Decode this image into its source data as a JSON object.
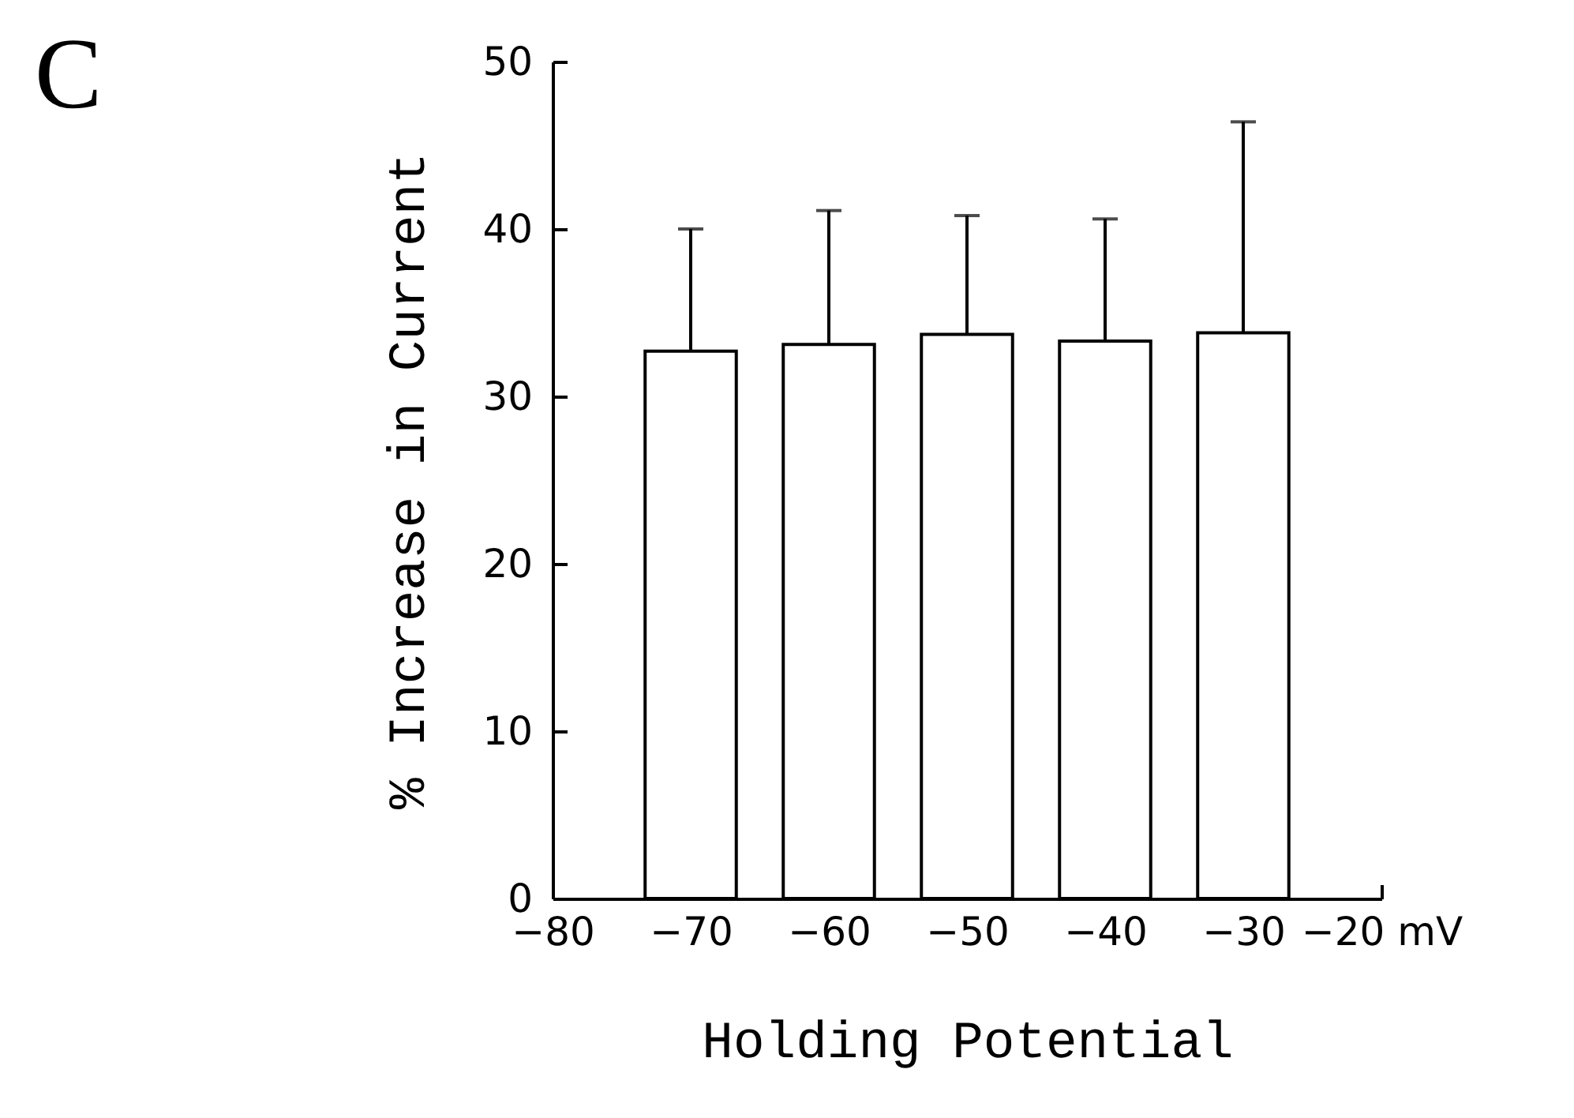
{
  "chart_data": {
    "type": "bar",
    "xlabel": "Holding Potential",
    "ylabel": "% Increase in Current",
    "annotations": [
      "C"
    ],
    "x": [
      -70,
      -60,
      -50,
      -40,
      -30
    ],
    "values": [
      32.7,
      33.1,
      33.7,
      33.3,
      33.8
    ],
    "errors": [
      [
        32.7,
        40.0
      ],
      [
        33.1,
        41.1
      ],
      [
        33.7,
        40.8
      ],
      [
        33.3,
        40.6
      ],
      [
        33.8,
        46.4
      ]
    ],
    "color": "#ffffff",
    "xlim": [
      -80,
      -20
    ],
    "xticks": [
      -80,
      -70,
      -60,
      -50,
      -40,
      -30,
      {
        "value": -20,
        "label": "−20 mV"
      }
    ],
    "ylim": [
      0,
      50
    ],
    "yticks": [
      0,
      10,
      20,
      30,
      40,
      50
    ],
    "grid": false
  }
}
